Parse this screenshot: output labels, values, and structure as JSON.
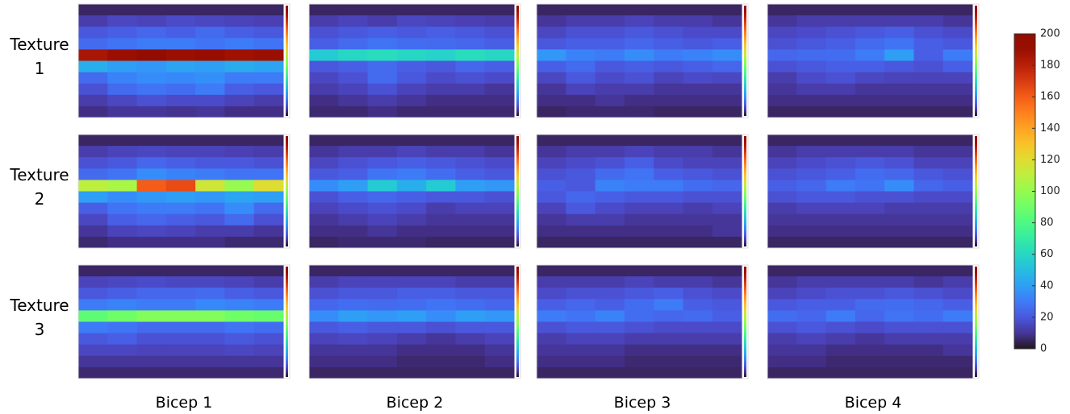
{
  "chart_data": {
    "type": "heatmap",
    "colormap": "turbo",
    "row_labels": [
      "Texture 1",
      "Texture 2",
      "Texture 3"
    ],
    "column_labels": [
      "Bicep 1",
      "Bicep 2",
      "Bicep 3",
      "Bicep 4"
    ],
    "colorbar": {
      "lim": [
        0,
        200
      ],
      "ticks": [
        0,
        20,
        40,
        60,
        80,
        100,
        120,
        140,
        160,
        180,
        200
      ]
    },
    "panels": [
      [
        [
          [
            5,
            5,
            5,
            5,
            5,
            5,
            5
          ],
          [
            12,
            15,
            14,
            16,
            15,
            14,
            13
          ],
          [
            20,
            22,
            24,
            22,
            25,
            22,
            20
          ],
          [
            25,
            28,
            30,
            30,
            28,
            30,
            28
          ],
          [
            185,
            190,
            195,
            190,
            192,
            188,
            190
          ],
          [
            45,
            40,
            38,
            42,
            40,
            44,
            42
          ],
          [
            25,
            32,
            35,
            34,
            36,
            30,
            30
          ],
          [
            18,
            25,
            28,
            26,
            30,
            22,
            20
          ],
          [
            12,
            15,
            18,
            16,
            16,
            14,
            12
          ],
          [
            8,
            10,
            10,
            9,
            10,
            8,
            8
          ]
        ],
        [
          [
            5,
            5,
            5,
            5,
            5,
            5,
            5
          ],
          [
            12,
            14,
            12,
            15,
            14,
            13,
            12
          ],
          [
            18,
            20,
            22,
            20,
            22,
            20,
            18
          ],
          [
            22,
            25,
            28,
            26,
            25,
            24,
            22
          ],
          [
            55,
            60,
            62,
            60,
            58,
            62,
            60
          ],
          [
            20,
            22,
            25,
            22,
            20,
            24,
            22
          ],
          [
            15,
            18,
            25,
            20,
            16,
            18,
            16
          ],
          [
            12,
            14,
            18,
            14,
            12,
            12,
            10
          ],
          [
            8,
            10,
            12,
            10,
            8,
            8,
            8
          ],
          [
            6,
            6,
            8,
            6,
            6,
            6,
            6
          ]
        ],
        [
          [
            5,
            5,
            5,
            5,
            5,
            5,
            5
          ],
          [
            10,
            12,
            12,
            14,
            12,
            12,
            10
          ],
          [
            15,
            18,
            18,
            20,
            18,
            16,
            16
          ],
          [
            20,
            22,
            22,
            24,
            22,
            20,
            22
          ],
          [
            38,
            32,
            30,
            35,
            30,
            32,
            35
          ],
          [
            22,
            25,
            20,
            22,
            20,
            22,
            24
          ],
          [
            15,
            20,
            16,
            18,
            14,
            16,
            15
          ],
          [
            10,
            14,
            12,
            12,
            10,
            10,
            10
          ],
          [
            8,
            8,
            10,
            8,
            8,
            8,
            8
          ],
          [
            5,
            6,
            6,
            6,
            5,
            5,
            5
          ]
        ],
        [
          [
            5,
            5,
            5,
            5,
            5,
            5,
            5
          ],
          [
            10,
            12,
            12,
            12,
            12,
            12,
            10
          ],
          [
            15,
            16,
            18,
            20,
            22,
            18,
            16
          ],
          [
            18,
            20,
            22,
            25,
            28,
            22,
            20
          ],
          [
            24,
            25,
            26,
            30,
            40,
            22,
            30
          ],
          [
            18,
            20,
            22,
            22,
            20,
            18,
            22
          ],
          [
            12,
            16,
            18,
            15,
            14,
            14,
            14
          ],
          [
            10,
            12,
            12,
            10,
            10,
            10,
            10
          ],
          [
            8,
            8,
            8,
            8,
            8,
            8,
            8
          ],
          [
            5,
            5,
            5,
            5,
            5,
            5,
            5
          ]
        ]
      ],
      [
        [
          [
            5,
            5,
            5,
            5,
            5,
            5,
            5
          ],
          [
            12,
            14,
            15,
            14,
            14,
            13,
            12
          ],
          [
            18,
            20,
            24,
            22,
            20,
            20,
            18
          ],
          [
            25,
            28,
            35,
            32,
            30,
            28,
            28
          ],
          [
            110,
            105,
            160,
            165,
            115,
            100,
            120
          ],
          [
            40,
            35,
            38,
            40,
            38,
            42,
            40
          ],
          [
            22,
            28,
            30,
            30,
            28,
            35,
            25
          ],
          [
            15,
            22,
            24,
            22,
            20,
            25,
            18
          ],
          [
            10,
            14,
            15,
            14,
            12,
            12,
            10
          ],
          [
            6,
            8,
            8,
            8,
            8,
            6,
            6
          ]
        ],
        [
          [
            5,
            5,
            5,
            5,
            5,
            5,
            5
          ],
          [
            10,
            12,
            12,
            14,
            12,
            12,
            10
          ],
          [
            15,
            18,
            20,
            22,
            20,
            18,
            16
          ],
          [
            20,
            22,
            28,
            30,
            26,
            22,
            20
          ],
          [
            35,
            40,
            55,
            45,
            55,
            40,
            38
          ],
          [
            18,
            22,
            24,
            22,
            20,
            20,
            18
          ],
          [
            14,
            16,
            18,
            16,
            12,
            14,
            14
          ],
          [
            10,
            12,
            14,
            12,
            10,
            10,
            10
          ],
          [
            8,
            8,
            10,
            8,
            8,
            8,
            8
          ],
          [
            5,
            6,
            6,
            6,
            5,
            5,
            5
          ]
        ],
        [
          [
            5,
            5,
            5,
            5,
            5,
            5,
            5
          ],
          [
            10,
            12,
            12,
            14,
            12,
            12,
            10
          ],
          [
            14,
            16,
            18,
            22,
            16,
            14,
            14
          ],
          [
            18,
            20,
            25,
            28,
            22,
            20,
            18
          ],
          [
            22,
            20,
            32,
            30,
            30,
            26,
            24
          ],
          [
            20,
            24,
            22,
            20,
            20,
            18,
            18
          ],
          [
            14,
            20,
            16,
            14,
            14,
            12,
            14
          ],
          [
            10,
            12,
            12,
            10,
            10,
            10,
            10
          ],
          [
            8,
            8,
            8,
            8,
            8,
            8,
            10
          ],
          [
            5,
            5,
            5,
            5,
            5,
            5,
            5
          ]
        ],
        [
          [
            5,
            5,
            5,
            5,
            5,
            5,
            5
          ],
          [
            10,
            12,
            12,
            12,
            12,
            10,
            10
          ],
          [
            14,
            16,
            18,
            20,
            18,
            14,
            14
          ],
          [
            18,
            20,
            22,
            26,
            24,
            20,
            18
          ],
          [
            22,
            24,
            30,
            28,
            35,
            24,
            22
          ],
          [
            18,
            20,
            20,
            18,
            18,
            16,
            16
          ],
          [
            12,
            14,
            14,
            14,
            12,
            12,
            12
          ],
          [
            10,
            10,
            10,
            10,
            10,
            10,
            10
          ],
          [
            8,
            8,
            8,
            8,
            8,
            8,
            8
          ],
          [
            5,
            5,
            5,
            5,
            5,
            5,
            5
          ]
        ]
      ],
      [
        [
          [
            5,
            5,
            5,
            5,
            5,
            5,
            5
          ],
          [
            14,
            15,
            16,
            15,
            15,
            14,
            12
          ],
          [
            20,
            22,
            24,
            24,
            25,
            22,
            20
          ],
          [
            30,
            32,
            30,
            30,
            34,
            32,
            30
          ],
          [
            85,
            90,
            95,
            95,
            95,
            90,
            88
          ],
          [
            30,
            28,
            25,
            25,
            25,
            28,
            26
          ],
          [
            20,
            22,
            18,
            18,
            18,
            20,
            18
          ],
          [
            15,
            15,
            14,
            14,
            14,
            15,
            14
          ],
          [
            10,
            10,
            10,
            10,
            10,
            10,
            10
          ],
          [
            6,
            6,
            6,
            6,
            6,
            6,
            6
          ]
        ],
        [
          [
            5,
            5,
            5,
            5,
            5,
            5,
            5
          ],
          [
            12,
            14,
            14,
            14,
            14,
            12,
            12
          ],
          [
            18,
            20,
            20,
            22,
            22,
            20,
            20
          ],
          [
            24,
            26,
            25,
            26,
            28,
            26,
            24
          ],
          [
            35,
            40,
            38,
            40,
            35,
            40,
            38
          ],
          [
            20,
            22,
            20,
            20,
            18,
            20,
            20
          ],
          [
            14,
            15,
            14,
            12,
            10,
            12,
            14
          ],
          [
            10,
            10,
            10,
            8,
            8,
            8,
            10
          ],
          [
            8,
            8,
            8,
            6,
            6,
            6,
            8
          ],
          [
            5,
            5,
            5,
            5,
            5,
            5,
            5
          ]
        ],
        [
          [
            5,
            5,
            5,
            5,
            5,
            5,
            5
          ],
          [
            12,
            12,
            12,
            14,
            12,
            12,
            10
          ],
          [
            16,
            18,
            18,
            20,
            22,
            18,
            16
          ],
          [
            22,
            24,
            22,
            26,
            30,
            22,
            20
          ],
          [
            30,
            28,
            32,
            26,
            24,
            25,
            22
          ],
          [
            18,
            20,
            20,
            18,
            16,
            16,
            16
          ],
          [
            12,
            14,
            14,
            12,
            12,
            12,
            12
          ],
          [
            10,
            10,
            10,
            8,
            8,
            8,
            8
          ],
          [
            8,
            8,
            8,
            6,
            6,
            6,
            6
          ],
          [
            5,
            5,
            5,
            5,
            5,
            5,
            5
          ]
        ],
        [
          [
            5,
            5,
            5,
            5,
            5,
            5,
            5
          ],
          [
            10,
            12,
            12,
            12,
            12,
            10,
            12
          ],
          [
            14,
            16,
            18,
            18,
            20,
            18,
            16
          ],
          [
            20,
            22,
            22,
            25,
            26,
            24,
            22
          ],
          [
            26,
            24,
            30,
            24,
            28,
            26,
            30
          ],
          [
            18,
            20,
            18,
            16,
            18,
            18,
            18
          ],
          [
            12,
            14,
            12,
            10,
            12,
            12,
            12
          ],
          [
            10,
            10,
            8,
            8,
            8,
            8,
            10
          ],
          [
            8,
            8,
            6,
            6,
            6,
            6,
            6
          ],
          [
            5,
            5,
            5,
            5,
            5,
            5,
            5
          ]
        ]
      ]
    ]
  }
}
